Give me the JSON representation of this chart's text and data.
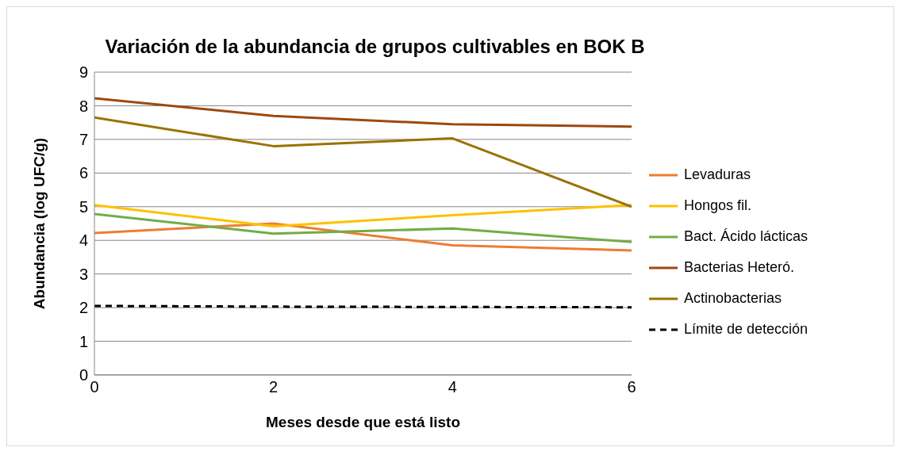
{
  "chart_data": {
    "type": "line",
    "title": "Variación de la abundancia de grupos cultivables en BOK B",
    "xlabel": "Meses desde que está listo",
    "ylabel": "Abundancia (log UFC/g)",
    "x": [
      0,
      2,
      4,
      6
    ],
    "xlim": [
      0,
      6
    ],
    "xticks": [
      0,
      2,
      4,
      6
    ],
    "ylim": [
      0,
      9
    ],
    "yticks": [
      0,
      1,
      2,
      3,
      4,
      5,
      6,
      7,
      8,
      9
    ],
    "grid": "y",
    "legend": "right",
    "marker": "none",
    "series": [
      {
        "name": "Levaduras",
        "color": "#ed7d31",
        "values": [
          4.22,
          4.5,
          3.85,
          3.7
        ]
      },
      {
        "name": "Hongos fil.",
        "color": "#ffc000",
        "values": [
          5.05,
          4.42,
          4.75,
          5.05
        ]
      },
      {
        "name": "Bact. Ácido lácticas",
        "color": "#70ad47",
        "values": [
          4.78,
          4.2,
          4.35,
          3.95
        ]
      },
      {
        "name": "Bacterias Heteró.",
        "color": "#9e480e",
        "values": [
          8.22,
          7.7,
          7.45,
          7.38
        ]
      },
      {
        "name": "Actinobacterias",
        "color": "#997300",
        "values": [
          7.65,
          6.8,
          7.03,
          5.0
        ]
      },
      {
        "name": "Límite de detección",
        "color": "#000000",
        "line_style": "dashed",
        "values": [
          2.05,
          2.03,
          2.02,
          2.01
        ]
      }
    ]
  }
}
